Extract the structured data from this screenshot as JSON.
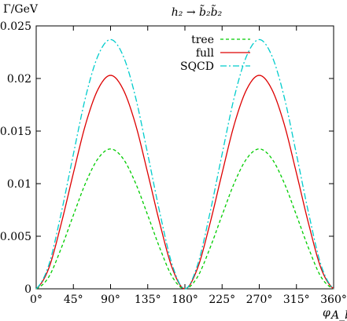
{
  "chart_data": {
    "type": "line",
    "title": "h₂ → b̃₂b̃₂",
    "ylabel": "Γ/GeV",
    "xlabel": "φ",
    "xlabel_sub": "A_b",
    "xlim": [
      0,
      360
    ],
    "ylim": [
      0,
      0.025
    ],
    "grid": false,
    "legend_position": "top-center",
    "x_ticks": [
      0,
      45,
      90,
      135,
      180,
      225,
      270,
      315,
      360
    ],
    "x_tick_labels": [
      "0°",
      "45°",
      "90°",
      "135°",
      "180°",
      "225°",
      "270°",
      "315°",
      "360°"
    ],
    "y_ticks": [
      0,
      0.005,
      0.01,
      0.015,
      0.02,
      0.025
    ],
    "y_tick_labels": [
      "0",
      "0.005",
      "0.01",
      "0.015",
      "0.02",
      "0.025"
    ],
    "x": [
      0,
      15,
      30,
      45,
      60,
      75,
      90,
      105,
      120,
      135,
      150,
      165,
      180,
      195,
      210,
      225,
      240,
      255,
      270,
      285,
      300,
      315,
      330,
      345,
      360
    ],
    "series": [
      {
        "name": "tree",
        "color": "#00cc00",
        "dash": "dashed",
        "values": [
          0,
          0.0011,
          0.0038,
          0.007,
          0.0101,
          0.0124,
          0.0133,
          0.0124,
          0.0101,
          0.007,
          0.0038,
          0.0011,
          0,
          0.0011,
          0.0038,
          0.007,
          0.0101,
          0.0124,
          0.0133,
          0.0124,
          0.0101,
          0.007,
          0.0038,
          0.0011,
          0
        ]
      },
      {
        "name": "full",
        "color": "#dd0000",
        "dash": "solid",
        "values": [
          0,
          0.0019,
          0.0061,
          0.011,
          0.0157,
          0.019,
          0.0203,
          0.019,
          0.0157,
          0.011,
          0.0061,
          0.0019,
          0,
          0.0019,
          0.0061,
          0.011,
          0.0157,
          0.019,
          0.0203,
          0.019,
          0.0157,
          0.011,
          0.0061,
          0.0019,
          0
        ]
      },
      {
        "name": "SQCD",
        "color": "#00cccc",
        "dash": "dashdot",
        "values": [
          0,
          0.0022,
          0.0071,
          0.0128,
          0.0183,
          0.0222,
          0.0237,
          0.0222,
          0.0183,
          0.0128,
          0.0071,
          0.0022,
          0,
          0.0022,
          0.0071,
          0.0128,
          0.0183,
          0.0222,
          0.0237,
          0.0222,
          0.0183,
          0.0128,
          0.0071,
          0.0022,
          0
        ]
      }
    ]
  }
}
